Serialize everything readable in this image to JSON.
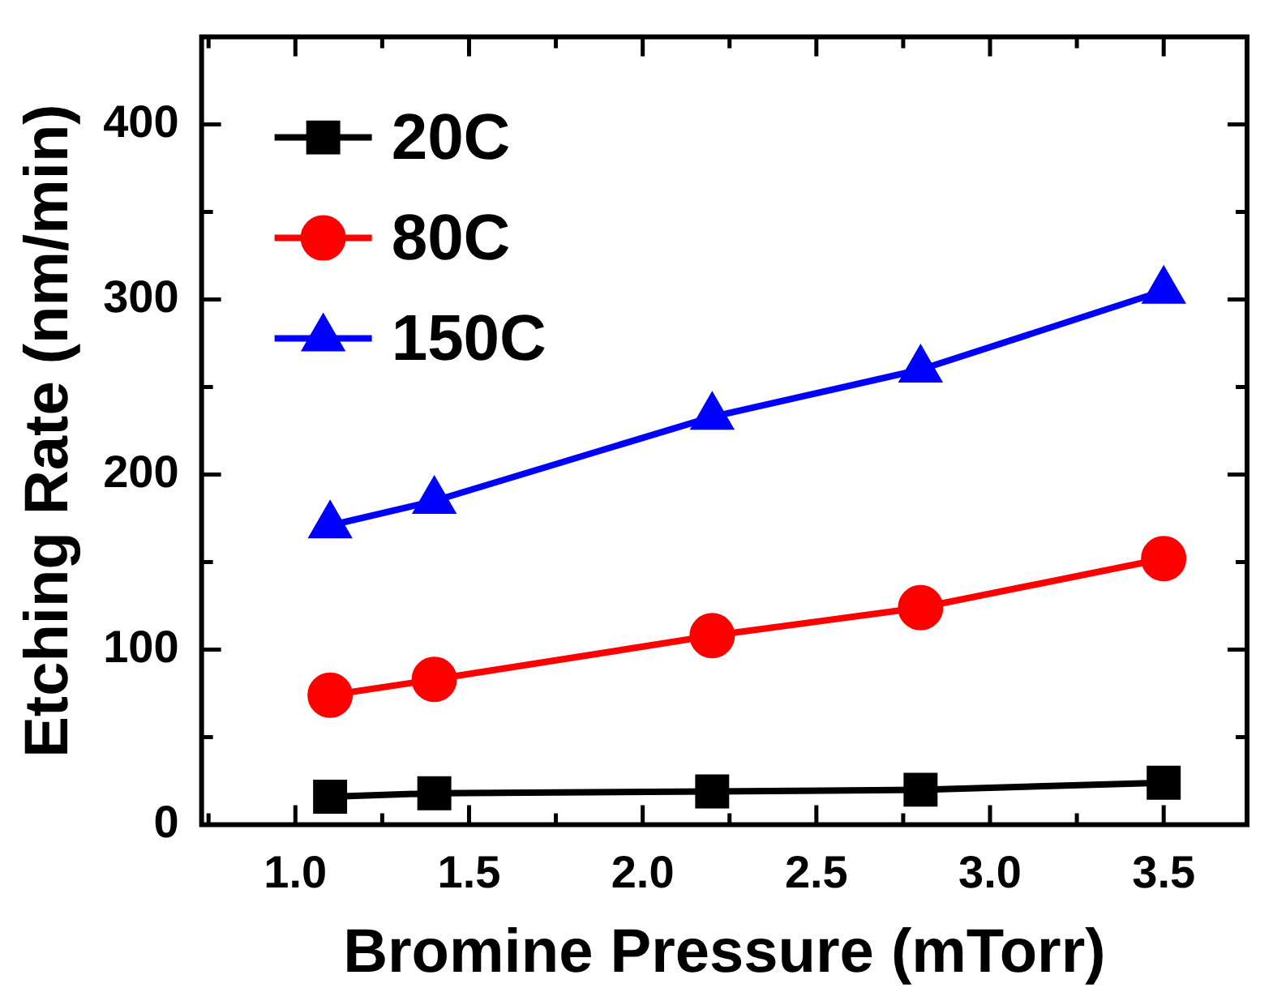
{
  "chart_data": {
    "type": "line",
    "xlabel": "Bromine Pressure (mTorr)",
    "ylabel": "Etching Rate (nm/min)",
    "x": [
      1.1,
      1.4,
      2.2,
      2.8,
      3.5
    ],
    "series": [
      {
        "name": "20C",
        "color": "#000000",
        "values": [
          16,
          18,
          19,
          20,
          24
        ],
        "marker": "square"
      },
      {
        "name": "80C",
        "color": "#ff0000",
        "values": [
          74,
          83,
          108,
          124,
          152
        ],
        "marker": "circle"
      },
      {
        "name": "150C",
        "color": "#0000ff",
        "values": [
          171,
          185,
          233,
          260,
          305
        ],
        "marker": "triangle"
      }
    ],
    "xlim": [
      0.73,
      3.74
    ],
    "xticks": [
      {
        "value": 0.75,
        "label": null
      },
      {
        "value": 1,
        "label": "1.0"
      },
      {
        "value": 1.25,
        "label": null
      },
      1.5,
      {
        "value": 1.75,
        "label": null
      },
      {
        "value": 2,
        "label": "2.0"
      },
      {
        "value": 2.25,
        "label": null
      },
      2.5,
      {
        "value": 2.75,
        "label": null
      },
      {
        "value": 3,
        "label": "3.0"
      },
      {
        "value": 3.25,
        "label": null
      },
      3.5
    ],
    "ylim": [
      0,
      450
    ],
    "yticks": [
      0,
      {
        "value": 50,
        "label": null
      },
      100,
      {
        "value": 150,
        "label": null
      },
      200,
      {
        "value": 250,
        "label": null
      },
      300,
      {
        "value": 350,
        "label": null
      },
      400
    ],
    "grid": false,
    "legend": "top left",
    "line_style": "solid"
  }
}
